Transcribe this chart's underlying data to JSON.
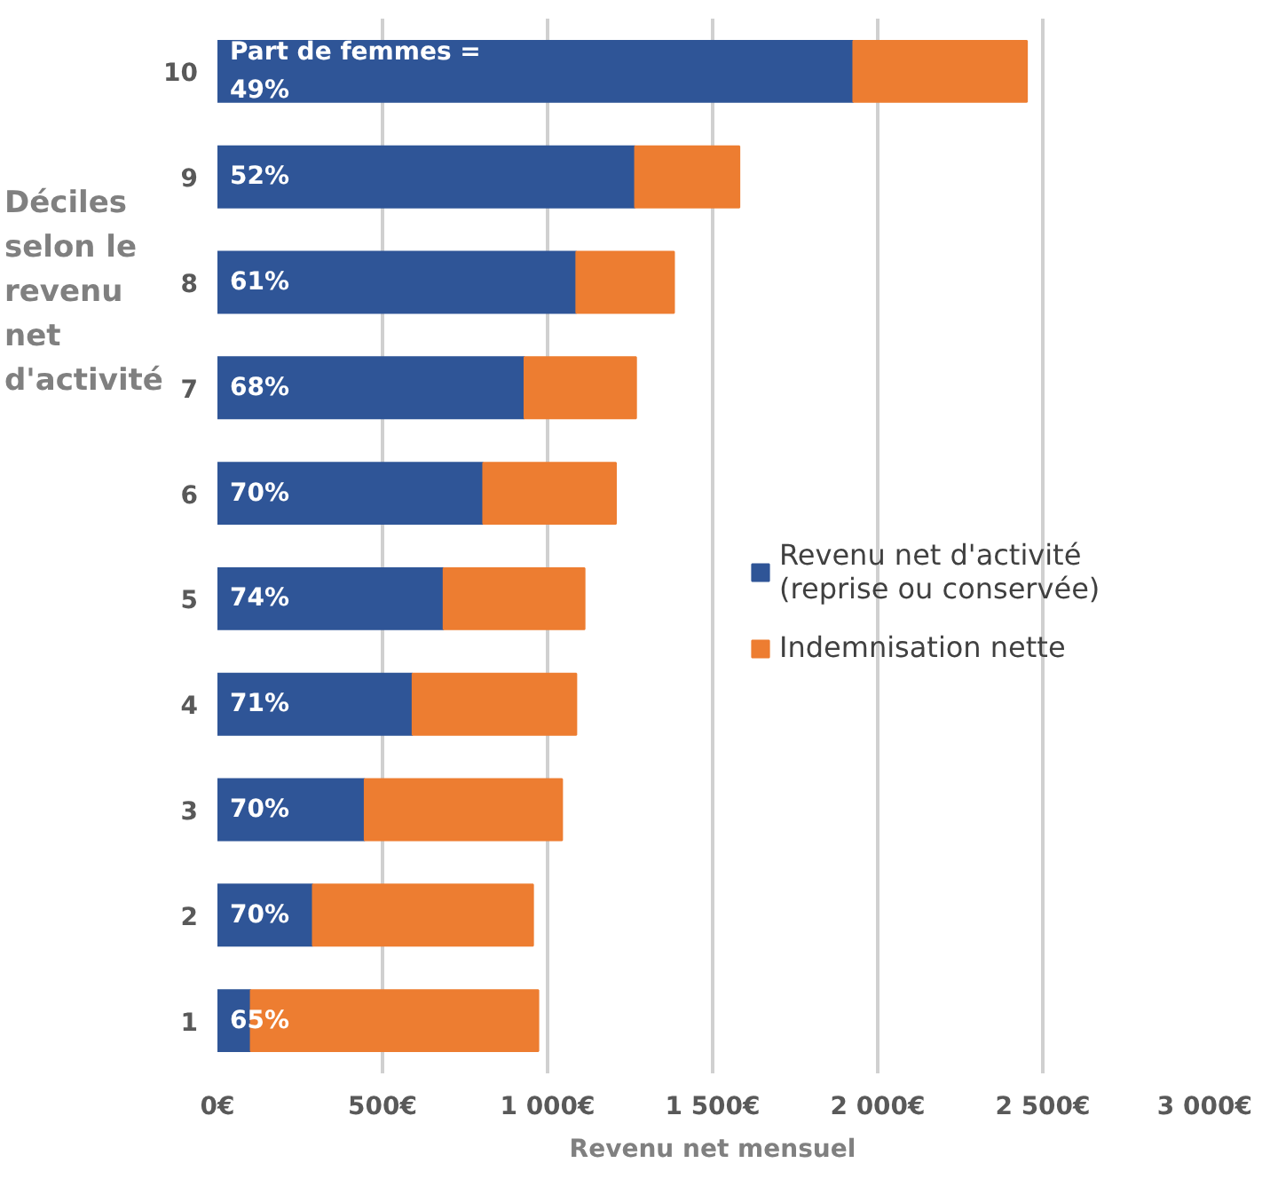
{
  "chart_data": {
    "type": "bar",
    "orientation": "horizontal",
    "stacked": true,
    "ylabel": "Déciles selon le revenu net d'activité",
    "xlabel": "Revenu net mensuel",
    "categories": [
      "10",
      "9",
      "8",
      "7",
      "6",
      "5",
      "4",
      "3",
      "2",
      "1"
    ],
    "series": [
      {
        "name": "Revenu net d'activité (reprise ou conservée)",
        "color": "#2f5597",
        "values": [
          1926,
          1265,
          1087,
          930,
          805,
          685,
          591,
          446,
          289,
          101
        ]
      },
      {
        "name": "Indemnisation nette",
        "color": "#ed7d31",
        "values": [
          526,
          316,
          296,
          338,
          402,
          427,
          496,
          598,
          667,
          871
        ]
      }
    ],
    "xlim": [
      0,
      3000
    ],
    "xticks": [
      {
        "value": 0,
        "label": "0€"
      },
      {
        "value": 500,
        "label": "500€"
      },
      {
        "value": 1000,
        "label": "1 000€"
      },
      {
        "value": 1500,
        "label": "1 500€"
      },
      {
        "value": 2000,
        "label": "2 000€"
      },
      {
        "value": 2500,
        "label": "2 500€"
      },
      {
        "value": 3000,
        "label": "3 000€"
      }
    ],
    "annotations": [
      "Part de femmes =\n49%",
      "52%",
      "61%",
      "68%",
      "70%",
      "74%",
      "71%",
      "70%",
      "70%",
      "65%"
    ],
    "grid": "x",
    "legend": "right"
  }
}
